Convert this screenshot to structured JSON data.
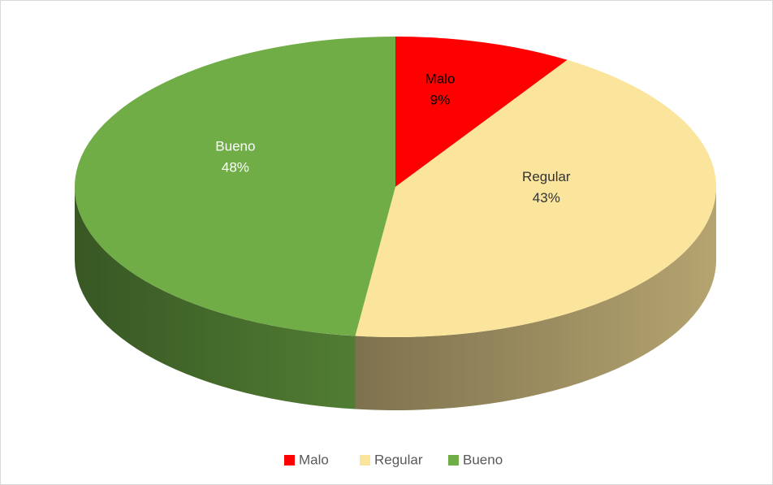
{
  "chart_data": {
    "type": "pie",
    "categories": [
      "Malo",
      "Regular",
      "Bueno"
    ],
    "values": [
      9,
      43,
      48
    ],
    "value_labels": [
      "9%",
      "43%",
      "48%"
    ],
    "colors": [
      "#ff0000",
      "#fbe49b",
      "#70ad47"
    ],
    "legend": "bottom"
  }
}
